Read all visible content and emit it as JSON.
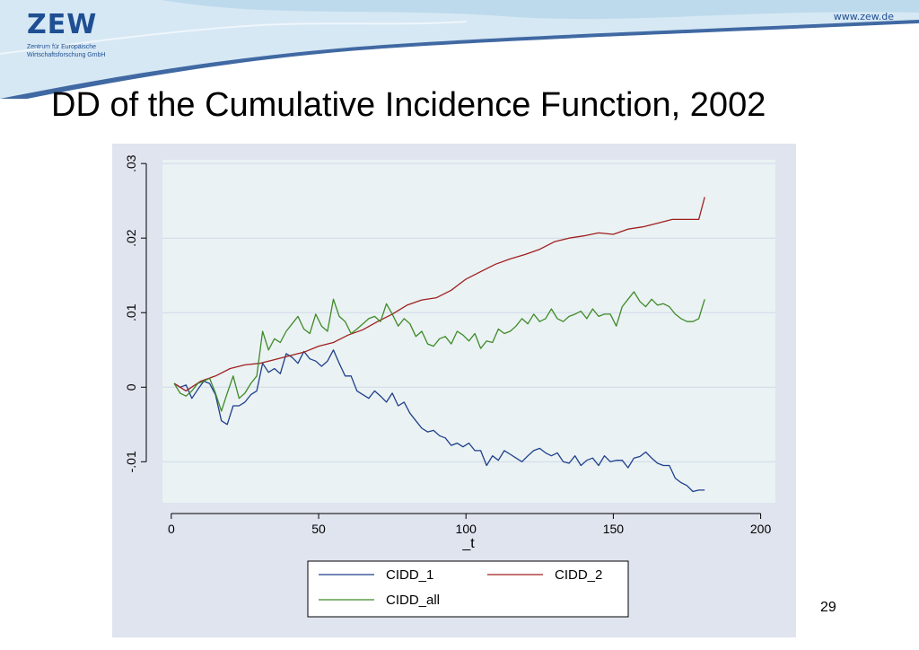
{
  "header": {
    "logo": "ZEW",
    "logo_subtitle_1": "Zentrum für Europäische",
    "logo_subtitle_2": "Wirtschaftsforschung GmbH",
    "website": "www.zew.de",
    "colors": {
      "brand": "#1f4f93",
      "wave_light": "#d6e8f4",
      "wave_mid": "#a9cde6"
    }
  },
  "slide": {
    "title": "DD of the Cumulative Incidence Function, 2002",
    "page_number": "29"
  },
  "chart_data": {
    "type": "line",
    "title": "",
    "xlabel": "_t",
    "ylabel": "",
    "xlim": [
      -3,
      205
    ],
    "ylim": [
      -0.0155,
      0.0305
    ],
    "xticks": [
      0,
      50,
      100,
      150,
      200
    ],
    "xtick_labels": [
      "0",
      "50",
      "100",
      "150",
      "200"
    ],
    "yticks": [
      -0.01,
      0,
      0.01,
      0.02,
      0.03
    ],
    "ytick_labels": [
      "-.01",
      "0",
      ".01",
      ".02",
      ".03"
    ],
    "grid": true,
    "legend_position": "bottom",
    "colors": {
      "plot_bg": "#eaf2f3",
      "outer_bg": "#e0e4ef",
      "grid": "#d0daea"
    },
    "series": [
      {
        "name": "CIDD_1",
        "color": "#1f3f8c",
        "x": [
          1,
          3,
          5,
          7,
          9,
          11,
          13,
          15,
          17,
          19,
          21,
          23,
          25,
          27,
          29,
          31,
          33,
          35,
          37,
          39,
          41,
          43,
          45,
          47,
          49,
          51,
          53,
          55,
          57,
          59,
          61,
          63,
          65,
          67,
          69,
          71,
          73,
          75,
          77,
          79,
          81,
          83,
          85,
          87,
          89,
          91,
          93,
          95,
          97,
          99,
          101,
          103,
          105,
          107,
          109,
          111,
          113,
          115,
          117,
          119,
          121,
          123,
          125,
          127,
          129,
          131,
          133,
          135,
          137,
          139,
          141,
          143,
          145,
          147,
          149,
          151,
          153,
          155,
          157,
          159,
          161,
          163,
          165,
          167,
          169,
          171,
          173,
          175,
          177,
          179,
          181
        ],
        "y": [
          0.0005,
          0.0,
          0.0003,
          -0.0015,
          -0.0003,
          0.0008,
          0.0005,
          -0.001,
          -0.0045,
          -0.005,
          -0.0025,
          -0.0025,
          -0.002,
          -0.001,
          -0.0005,
          0.0032,
          0.002,
          0.0025,
          0.0018,
          0.0045,
          0.004,
          0.0032,
          0.0048,
          0.0038,
          0.0035,
          0.0028,
          0.0035,
          0.005,
          0.0032,
          0.0015,
          0.0015,
          -0.0005,
          -0.001,
          -0.0015,
          -0.0005,
          -0.0012,
          -0.002,
          -0.0008,
          -0.0025,
          -0.002,
          -0.0035,
          -0.0045,
          -0.0055,
          -0.006,
          -0.0058,
          -0.0065,
          -0.0068,
          -0.0078,
          -0.0075,
          -0.008,
          -0.0075,
          -0.0085,
          -0.0085,
          -0.0105,
          -0.0092,
          -0.0098,
          -0.0085,
          -0.009,
          -0.0095,
          -0.01,
          -0.0092,
          -0.0085,
          -0.0082,
          -0.0088,
          -0.0092,
          -0.0088,
          -0.01,
          -0.0102,
          -0.0092,
          -0.0105,
          -0.0098,
          -0.0095,
          -0.0105,
          -0.0092,
          -0.01,
          -0.0098,
          -0.0098,
          -0.0108,
          -0.0095,
          -0.0093,
          -0.0087,
          -0.0095,
          -0.0102,
          -0.0105,
          -0.0105,
          -0.0122,
          -0.0128,
          -0.0132,
          -0.014,
          -0.0138,
          -0.0138
        ]
      },
      {
        "name": "CIDD_2",
        "color": "#a01f1f",
        "x": [
          1,
          5,
          10,
          15,
          20,
          25,
          30,
          35,
          40,
          45,
          50,
          55,
          60,
          65,
          70,
          75,
          80,
          85,
          90,
          95,
          100,
          105,
          110,
          115,
          120,
          125,
          130,
          135,
          140,
          145,
          150,
          155,
          160,
          165,
          170,
          175,
          179,
          180,
          181
        ],
        "y": [
          0.0005,
          -0.0005,
          0.0008,
          0.0015,
          0.0025,
          0.003,
          0.0032,
          0.0037,
          0.0042,
          0.0047,
          0.0055,
          0.006,
          0.007,
          0.0077,
          0.0088,
          0.0098,
          0.011,
          0.0117,
          0.012,
          0.013,
          0.0145,
          0.0155,
          0.0165,
          0.0172,
          0.0178,
          0.0185,
          0.0195,
          0.02,
          0.0203,
          0.0207,
          0.0205,
          0.0212,
          0.0215,
          0.022,
          0.0225,
          0.0225,
          0.0225,
          0.024,
          0.0255
        ]
      },
      {
        "name": "CIDD_all",
        "color": "#3f8a28",
        "x": [
          1,
          3,
          5,
          7,
          9,
          11,
          13,
          15,
          17,
          19,
          21,
          23,
          25,
          27,
          29,
          31,
          33,
          35,
          37,
          39,
          41,
          43,
          45,
          47,
          49,
          51,
          53,
          55,
          57,
          59,
          61,
          63,
          65,
          67,
          69,
          71,
          73,
          75,
          77,
          79,
          81,
          83,
          85,
          87,
          89,
          91,
          93,
          95,
          97,
          99,
          101,
          103,
          105,
          107,
          109,
          111,
          113,
          115,
          117,
          119,
          121,
          123,
          125,
          127,
          129,
          131,
          133,
          135,
          137,
          139,
          141,
          143,
          145,
          147,
          149,
          151,
          153,
          155,
          157,
          159,
          161,
          163,
          165,
          167,
          169,
          171,
          173,
          175,
          177,
          179,
          181
        ],
        "y": [
          0.0005,
          -0.0008,
          -0.0012,
          -0.0005,
          0.0005,
          0.0008,
          0.0012,
          -0.0008,
          -0.0032,
          -0.0008,
          0.0015,
          -0.0015,
          -0.0008,
          0.0005,
          0.0015,
          0.0075,
          0.005,
          0.0065,
          0.006,
          0.0075,
          0.0085,
          0.0095,
          0.0078,
          0.0072,
          0.0098,
          0.0082,
          0.0075,
          0.0118,
          0.0095,
          0.0088,
          0.0072,
          0.0078,
          0.0085,
          0.0092,
          0.0095,
          0.0088,
          0.0112,
          0.0098,
          0.0082,
          0.0092,
          0.0085,
          0.0068,
          0.0075,
          0.0058,
          0.0055,
          0.0065,
          0.0068,
          0.0058,
          0.0075,
          0.007,
          0.0062,
          0.0072,
          0.0052,
          0.0062,
          0.006,
          0.0078,
          0.0072,
          0.0075,
          0.0082,
          0.0092,
          0.0085,
          0.0098,
          0.0088,
          0.0092,
          0.0105,
          0.0092,
          0.0088,
          0.0095,
          0.0098,
          0.0102,
          0.0092,
          0.0105,
          0.0095,
          0.0098,
          0.0098,
          0.0082,
          0.0108,
          0.0118,
          0.0128,
          0.0115,
          0.0108,
          0.0118,
          0.011,
          0.0112,
          0.0108,
          0.0098,
          0.0092,
          0.0088,
          0.0088,
          0.0092,
          0.0118
        ]
      }
    ]
  }
}
